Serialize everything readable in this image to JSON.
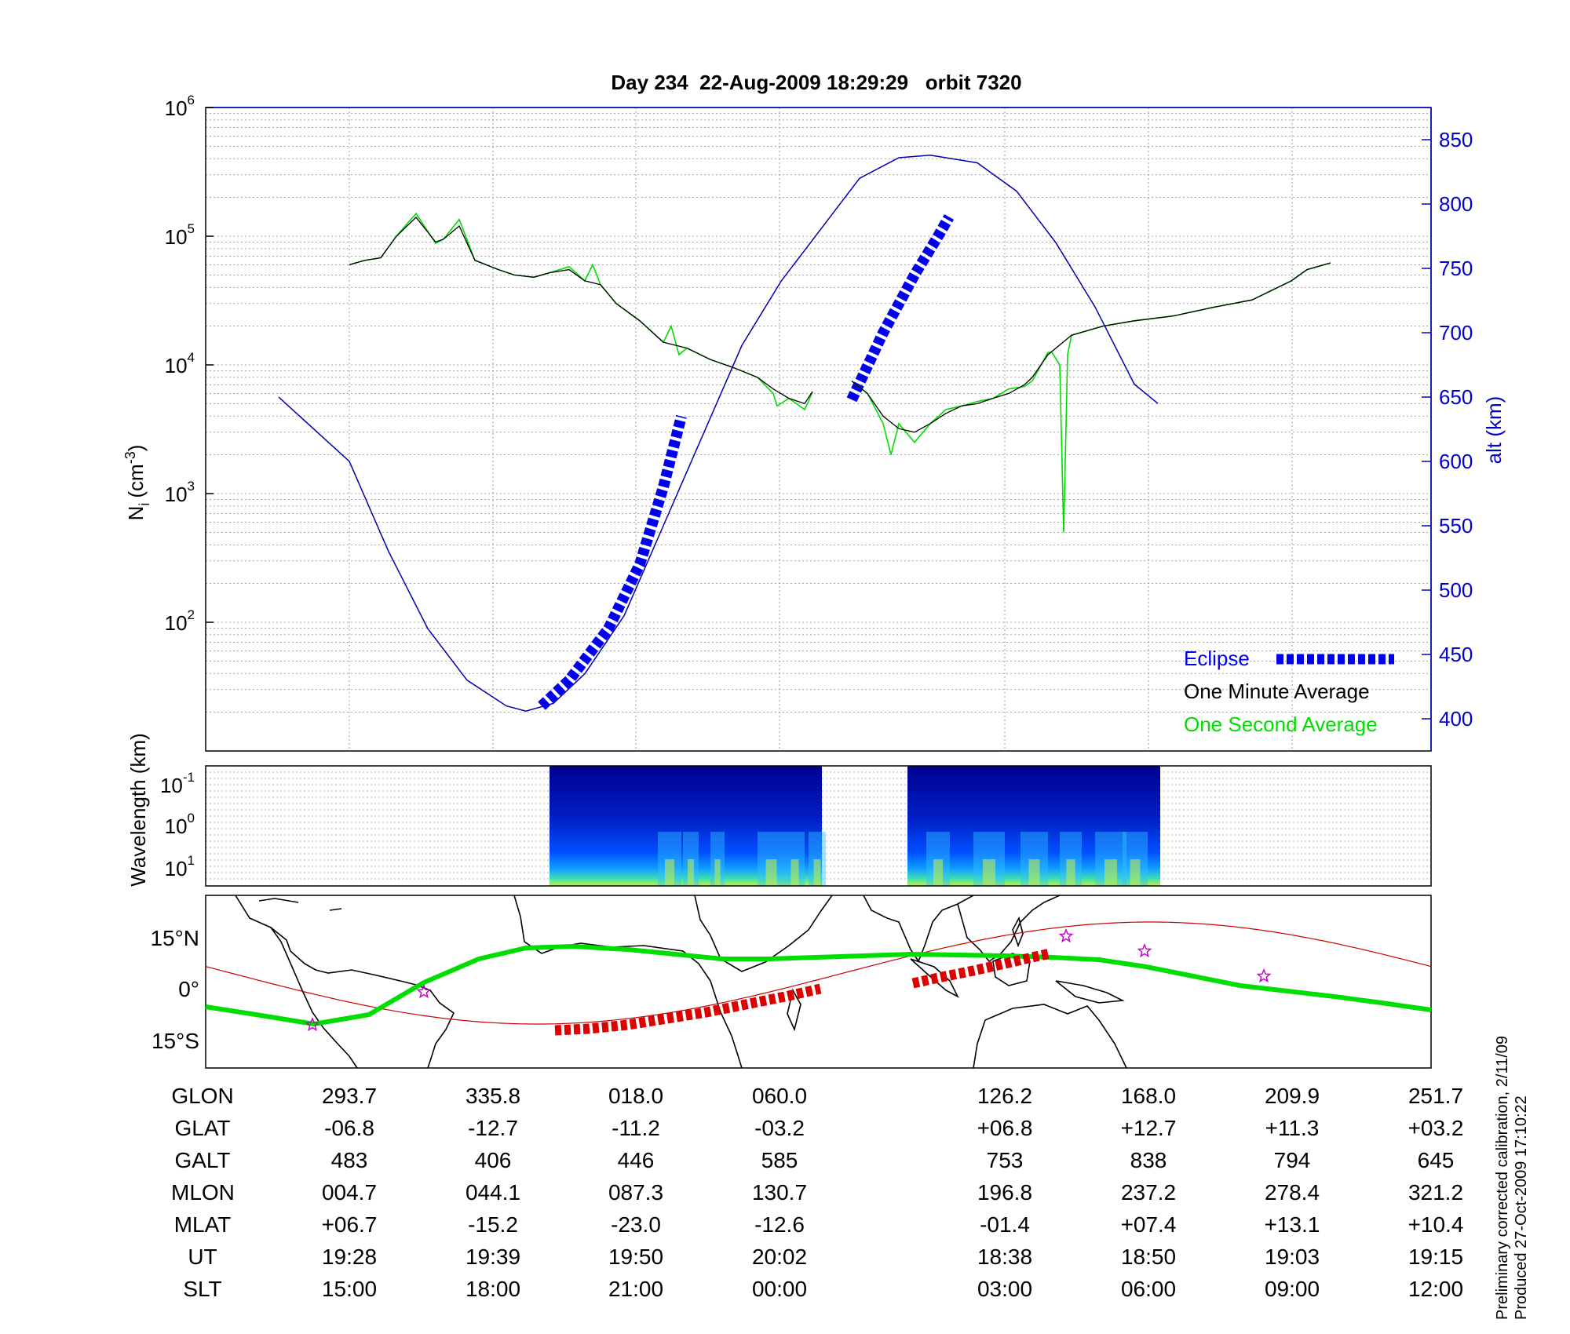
{
  "chart_data": {
    "type": "line",
    "title": "Day 234  22-Aug-2009 18:29:29   orbit 7320",
    "top_panel": {
      "ylabel": "N",
      "ylabel_sub": "i",
      "ylabel_unit": "(cm",
      "ylabel_exp": "-3",
      "ylabel_close": ")",
      "yscale": "log",
      "ylim": [
        10,
        1000000
      ],
      "yticks": [
        {
          "base": "10",
          "exp": "2",
          "value": 100
        },
        {
          "base": "10",
          "exp": "3",
          "value": 1000
        },
        {
          "base": "10",
          "exp": "4",
          "value": 10000
        },
        {
          "base": "10",
          "exp": "5",
          "value": 100000
        },
        {
          "base": "10",
          "exp": "6",
          "value": 1000000
        }
      ],
      "y2label": "alt (km)",
      "y2lim": [
        375,
        875
      ],
      "y2ticks": [
        "400",
        "450",
        "500",
        "550",
        "600",
        "650",
        "700",
        "750",
        "800",
        "850"
      ],
      "legend_position": "bottom-right",
      "grid": true,
      "series": [
        {
          "name": "Eclipse",
          "color": "#0000ee",
          "style": "thick-dashed",
          "segments": [
            [
              [
                0.245,
                410
              ],
              [
                0.28,
                430
              ],
              [
                0.33,
                470
              ],
              [
                0.37,
                520
              ],
              [
                0.4,
                580
              ],
              [
                0.423,
                635
              ]
            ],
            [
              [
                0.64,
                648
              ],
              [
                0.68,
                700
              ],
              [
                0.72,
                745
              ],
              [
                0.75,
                775
              ],
              [
                0.764,
                790
              ]
            ]
          ]
        },
        {
          "name": "One Minute Average",
          "color": "#000000",
          "points": [
            [
              0,
              60000
            ],
            [
              0.02,
              65000
            ],
            [
              0.04,
              68000
            ],
            [
              0.06,
              100000
            ],
            [
              0.085,
              140000
            ],
            [
              0.11,
              90000
            ],
            [
              0.12,
              95000
            ],
            [
              0.14,
              120000
            ],
            [
              0.16,
              65000
            ],
            [
              0.19,
              55000
            ],
            [
              0.21,
              50000
            ],
            [
              0.235,
              48000
            ],
            [
              0.255,
              52000
            ],
            [
              0.28,
              55000
            ],
            [
              0.3,
              45000
            ],
            [
              0.32,
              42000
            ],
            [
              0.34,
              30000
            ],
            [
              0.37,
              22000
            ],
            [
              0.4,
              15000
            ],
            [
              0.43,
              13500
            ],
            [
              0.46,
              11000
            ],
            [
              0.49,
              9500
            ],
            [
              0.52,
              8000
            ],
            [
              0.54,
              6500
            ],
            [
              0.56,
              5500
            ],
            [
              0.58,
              5000
            ],
            [
              0.59,
              6200
            ]
          ]
        },
        {
          "name": "One Minute Average",
          "color": "#000000",
          "points": [
            [
              0.64,
              7500
            ],
            [
              0.66,
              6000
            ],
            [
              0.68,
              4000
            ],
            [
              0.7,
              3200
            ],
            [
              0.72,
              3000
            ],
            [
              0.74,
              3500
            ],
            [
              0.76,
              4200
            ],
            [
              0.78,
              4800
            ],
            [
              0.8,
              5000
            ],
            [
              0.82,
              5500
            ],
            [
              0.84,
              6000
            ],
            [
              0.86,
              7000
            ],
            [
              0.87,
              8000
            ],
            [
              0.89,
              12000
            ],
            [
              0.92,
              17000
            ],
            [
              0.96,
              20000
            ],
            [
              1.0,
              22000
            ],
            [
              1.05,
              24000
            ],
            [
              1.1,
              28000
            ],
            [
              1.15,
              32000
            ],
            [
              1.2,
              45000
            ],
            [
              1.22,
              55000
            ],
            [
              1.25,
              62000
            ]
          ]
        },
        {
          "name": "One Second Average",
          "color": "#00dd00",
          "points": [
            [
              0,
              60000
            ],
            [
              0.02,
              65000
            ],
            [
              0.04,
              68000
            ],
            [
              0.06,
              100000
            ],
            [
              0.085,
              150000
            ],
            [
              0.11,
              88000
            ],
            [
              0.12,
              95000
            ],
            [
              0.14,
              135000
            ],
            [
              0.16,
              65000
            ],
            [
              0.19,
              55000
            ],
            [
              0.21,
              50000
            ],
            [
              0.235,
              48000
            ],
            [
              0.255,
              52000
            ],
            [
              0.28,
              58000
            ],
            [
              0.3,
              45000
            ],
            [
              0.31,
              60000
            ],
            [
              0.32,
              42000
            ],
            [
              0.34,
              30000
            ],
            [
              0.37,
              22000
            ],
            [
              0.4,
              15000
            ],
            [
              0.41,
              20000
            ],
            [
              0.42,
              12000
            ],
            [
              0.43,
              13500
            ],
            [
              0.46,
              11000
            ],
            [
              0.49,
              9500
            ],
            [
              0.52,
              8000
            ],
            [
              0.54,
              6000
            ],
            [
              0.545,
              4800
            ],
            [
              0.56,
              5500
            ],
            [
              0.58,
              4500
            ],
            [
              0.585,
              5200
            ],
            [
              0.59,
              6200
            ]
          ]
        },
        {
          "name": "One Second Average",
          "color": "#00dd00",
          "points": [
            [
              0.64,
              7500
            ],
            [
              0.66,
              6000
            ],
            [
              0.68,
              3500
            ],
            [
              0.69,
              2000
            ],
            [
              0.7,
              3500
            ],
            [
              0.72,
              2500
            ],
            [
              0.74,
              3500
            ],
            [
              0.76,
              4500
            ],
            [
              0.78,
              4800
            ],
            [
              0.8,
              5200
            ],
            [
              0.82,
              5500
            ],
            [
              0.84,
              6500
            ],
            [
              0.86,
              6800
            ],
            [
              0.87,
              7500
            ],
            [
              0.89,
              12500
            ],
            [
              0.895,
              12500
            ],
            [
              0.905,
              10000
            ],
            [
              0.91,
              500
            ],
            [
              0.915,
              12000
            ],
            [
              0.92,
              17000
            ],
            [
              0.96,
              20000
            ],
            [
              1.0,
              22000
            ],
            [
              1.05,
              24000
            ],
            [
              1.1,
              28000
            ],
            [
              1.15,
              32000
            ],
            [
              1.2,
              45000
            ],
            [
              1.22,
              55000
            ],
            [
              1.25,
              62000
            ]
          ]
        }
      ],
      "altitude_curve": {
        "color": "#0000aa",
        "points": [
          [
            -0.09,
            650
          ],
          [
            0,
            600
          ],
          [
            0.05,
            530
          ],
          [
            0.1,
            470
          ],
          [
            0.15,
            430
          ],
          [
            0.2,
            410
          ],
          [
            0.225,
            406
          ],
          [
            0.26,
            412
          ],
          [
            0.3,
            435
          ],
          [
            0.35,
            480
          ],
          [
            0.4,
            550
          ],
          [
            0.45,
            620
          ],
          [
            0.5,
            690
          ],
          [
            0.55,
            740
          ],
          [
            0.6,
            780
          ],
          [
            0.65,
            820
          ],
          [
            0.7,
            836
          ],
          [
            0.74,
            838
          ],
          [
            0.8,
            832
          ],
          [
            0.85,
            810
          ],
          [
            0.9,
            770
          ],
          [
            0.95,
            720
          ],
          [
            1.0,
            660
          ],
          [
            1.03,
            645
          ]
        ]
      }
    },
    "legend": {
      "eclipse": "Eclipse",
      "minute": "One Minute Average",
      "second": "One Second Average"
    },
    "spectrogram_panel": {
      "ylabel": "Wavelength (km)",
      "yticks": [
        {
          "base": "10",
          "exp": "-1"
        },
        {
          "base": "10",
          "exp": "0"
        },
        {
          "base": "10",
          "exp": "1"
        }
      ],
      "colormap": "jet"
    },
    "map_panel": {
      "yticks": [
        "15°N",
        "0°",
        "15°S"
      ],
      "track_color": "#dd0000",
      "magnetic_equator_color": "#00dd00",
      "marker_color": "#cc00cc"
    },
    "table": {
      "row_labels": [
        "GLON",
        "GLAT",
        "GALT",
        "MLON",
        "MLAT",
        "UT",
        "SLT"
      ],
      "columns": [
        [
          "293.7",
          "-06.8",
          "483",
          "004.7",
          "+06.7",
          "19:28",
          "15:00"
        ],
        [
          "335.8",
          "-12.7",
          "406",
          "044.1",
          "-15.2",
          "19:39",
          "18:00"
        ],
        [
          "018.0",
          "-11.2",
          "446",
          "087.3",
          "-23.0",
          "19:50",
          "21:00"
        ],
        [
          "060.0",
          "-03.2",
          "585",
          "130.7",
          "-12.6",
          "20:02",
          "00:00"
        ],
        [
          "126.2",
          "+06.8",
          "753",
          "196.8",
          "-01.4",
          "18:38",
          "03:00"
        ],
        [
          "168.0",
          "+12.7",
          "838",
          "237.2",
          "+07.4",
          "18:50",
          "06:00"
        ],
        [
          "209.9",
          "+11.3",
          "794",
          "278.4",
          "+13.1",
          "19:03",
          "09:00"
        ],
        [
          "251.7",
          "+03.2",
          "645",
          "321.2",
          "+10.4",
          "19:15",
          "12:00"
        ]
      ]
    },
    "footnote": {
      "line1": "Preliminary corrected calibration, 2/11/09",
      "line2": "Produced 27-Oct-2009 17:10:22"
    }
  }
}
